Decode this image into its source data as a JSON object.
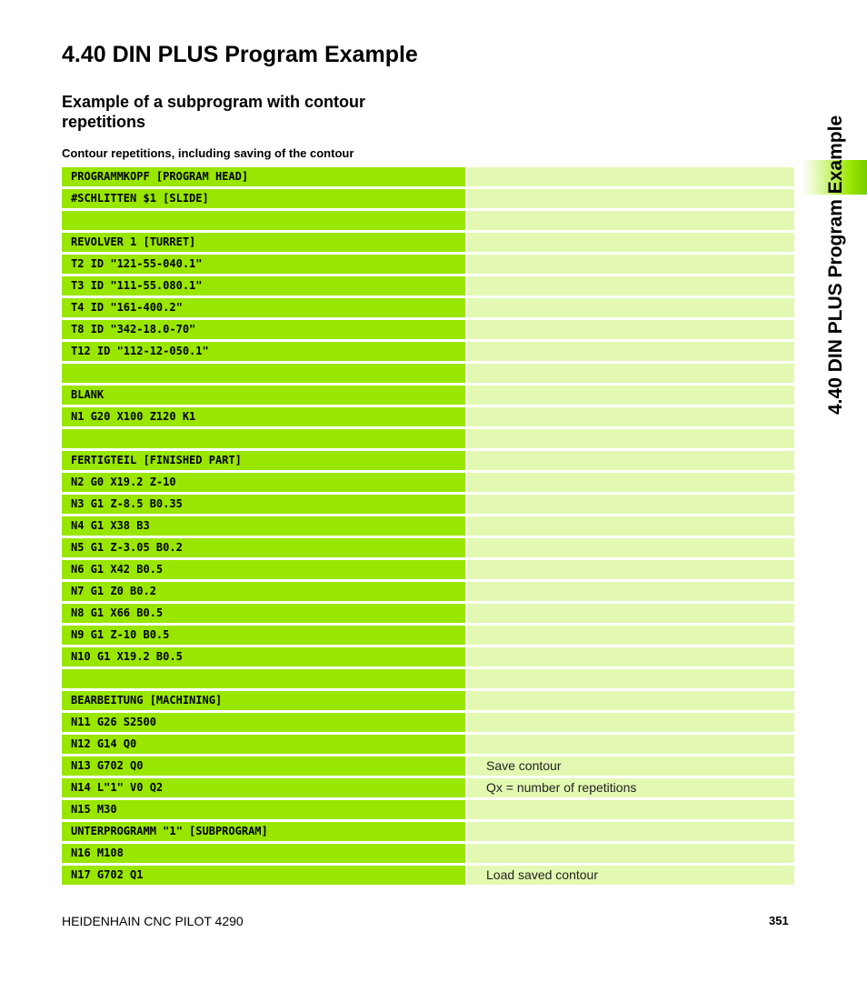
{
  "header": {
    "title": "4.40 DIN PLUS Program Example",
    "subtitle": "Example of a subprogram with contour repetitions",
    "caption": "Contour repetitions, including saving of the contour"
  },
  "sidebar": {
    "label": "4.40 DIN PLUS Program Example",
    "accent_color": "#99e600"
  },
  "program": {
    "rows": [
      {
        "code": "PROGRAMMKOPF [PROGRAM HEAD]",
        "comment": ""
      },
      {
        "code": "#SCHLITTEN $1 [SLIDE]",
        "comment": ""
      },
      {
        "code": "",
        "comment": ""
      },
      {
        "code": "REVOLVER 1 [TURRET]",
        "comment": ""
      },
      {
        "code": "T2 ID \"121-55-040.1\"",
        "comment": ""
      },
      {
        "code": "T3 ID \"111-55.080.1\"",
        "comment": ""
      },
      {
        "code": "T4 ID \"161-400.2\"",
        "comment": ""
      },
      {
        "code": "T8 ID \"342-18.0-70\"",
        "comment": ""
      },
      {
        "code": "T12 ID \"112-12-050.1\"",
        "comment": ""
      },
      {
        "code": "",
        "comment": ""
      },
      {
        "code": "BLANK",
        "comment": ""
      },
      {
        "code": "N1 G20 X100 Z120 K1",
        "comment": ""
      },
      {
        "code": "",
        "comment": ""
      },
      {
        "code": "FERTIGTEIL [FINISHED PART]",
        "comment": ""
      },
      {
        "code": "N2 G0 X19.2 Z-10",
        "comment": ""
      },
      {
        "code": "N3 G1 Z-8.5 B0.35",
        "comment": ""
      },
      {
        "code": "N4 G1 X38 B3",
        "comment": ""
      },
      {
        "code": "N5 G1 Z-3.05 B0.2",
        "comment": ""
      },
      {
        "code": "N6 G1 X42 B0.5",
        "comment": ""
      },
      {
        "code": "N7 G1 Z0 B0.2",
        "comment": ""
      },
      {
        "code": "N8 G1 X66 B0.5",
        "comment": ""
      },
      {
        "code": "N9 G1 Z-10 B0.5",
        "comment": ""
      },
      {
        "code": "N10 G1 X19.2 B0.5",
        "comment": ""
      },
      {
        "code": "",
        "comment": ""
      },
      {
        "code": "BEARBEITUNG [MACHINING]",
        "comment": ""
      },
      {
        "code": "N11 G26 S2500",
        "comment": ""
      },
      {
        "code": "N12 G14 Q0",
        "comment": ""
      },
      {
        "code": "N13 G702 Q0",
        "comment": "Save contour"
      },
      {
        "code": "N14 L\"1\" V0 Q2",
        "comment": "Qx = number of repetitions"
      },
      {
        "code": "N15 M30",
        "comment": ""
      },
      {
        "code": "UNTERPROGRAMM \"1\" [SUBPROGRAM]",
        "comment": ""
      },
      {
        "code": "N16 M108",
        "comment": ""
      },
      {
        "code": "N17 G702 Q1",
        "comment": "Load saved contour"
      }
    ]
  },
  "footer": {
    "left": "HEIDENHAIN CNC PILOT 4290",
    "page_number": "351"
  }
}
